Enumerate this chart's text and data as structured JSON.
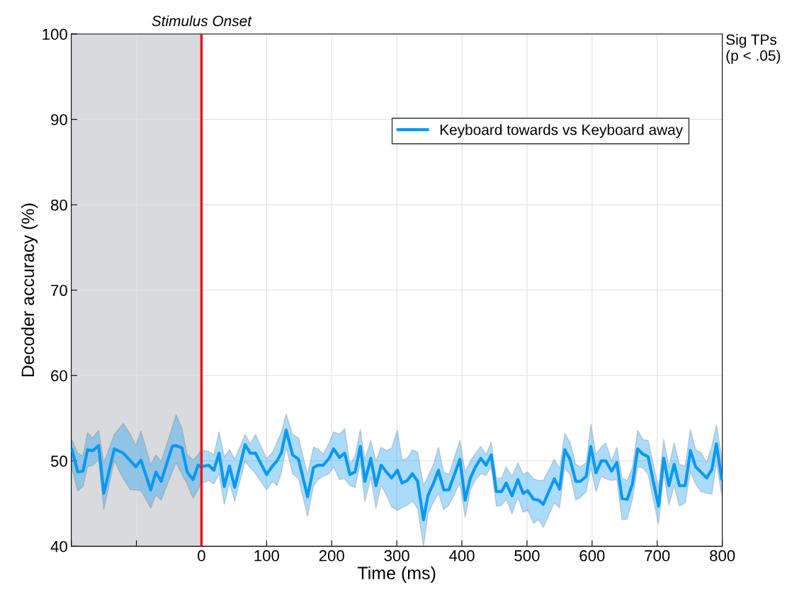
{
  "chart_data": {
    "type": "line",
    "xlabel": "Time (ms)",
    "ylabel": "Decoder accuracy (%)",
    "xlim": [
      -200,
      800
    ],
    "ylim": [
      40,
      100
    ],
    "xticks": [
      {
        "value": -200,
        "label": null
      },
      {
        "value": -100,
        "label": null
      },
      0,
      100,
      200,
      300,
      400,
      500,
      600,
      700,
      800
    ],
    "yticks": [
      40,
      50,
      60,
      70,
      80,
      90,
      100
    ],
    "grid": true,
    "legend": "top right",
    "line_style": "solid",
    "marker": "none",
    "bands": [
      {
        "axis": "x",
        "from": -200,
        "to": 0,
        "label": null,
        "color": "#d9dadd"
      }
    ],
    "ref_lines": [
      {
        "axis": "x",
        "value": 0,
        "label": "Stimulus Onset",
        "color": "#e8141b"
      }
    ],
    "annotations": [
      "Sig TPs\n(p < .05)"
    ],
    "series": [
      {
        "name": "Keyboard towards vs Keyboard away",
        "color": "#0b98f0",
        "x": [
          -199,
          -190,
          -182,
          -175,
          -167,
          -158,
          -150,
          -134,
          -120,
          -109,
          -101,
          -93,
          -78,
          -70,
          -62,
          -45,
          -39,
          -30,
          -22,
          -13,
          -5,
          -1,
          11,
          19,
          27,
          35,
          43,
          51,
          67,
          75,
          83,
          100,
          109,
          116,
          123,
          130,
          140,
          149,
          163,
          172,
          179,
          187,
          196,
          203,
          212,
          220,
          228,
          236,
          244,
          251,
          260,
          268,
          276,
          284,
          292,
          301,
          308,
          316,
          324,
          332,
          341,
          348,
          356,
          364,
          372,
          380,
          397,
          405,
          413,
          421,
          429,
          437,
          445,
          453,
          461,
          468,
          477,
          486,
          494,
          501,
          510,
          518,
          525,
          542,
          550,
          558,
          566,
          575,
          582,
          591,
          598,
          606,
          614,
          621,
          630,
          638,
          646,
          654,
          662,
          670,
          678,
          686,
          702,
          710,
          718,
          726,
          734,
          743,
          751,
          759,
          767,
          776,
          784,
          791,
          799
        ],
        "values": [
          51.3,
          48.7,
          48.8,
          51.3,
          51.2,
          51.8,
          46.2,
          51.4,
          50.9,
          50.0,
          49.3,
          50.1,
          46.6,
          48.7,
          47.6,
          51.7,
          51.8,
          51.5,
          48.7,
          47.8,
          49.5,
          49.3,
          49.5,
          48.9,
          50.9,
          47.0,
          49.4,
          46.9,
          51.9,
          50.9,
          50.9,
          48.4,
          49.4,
          50.0,
          51.0,
          53.6,
          50.7,
          50.2,
          45.8,
          49.2,
          49.5,
          49.5,
          50.3,
          51.4,
          50.4,
          50.9,
          48.4,
          48.7,
          51.7,
          47.6,
          50.3,
          47.1,
          49.5,
          48.7,
          48.0,
          48.9,
          47.4,
          47.7,
          48.5,
          47.6,
          43.1,
          46.0,
          47.3,
          48.9,
          46.6,
          46.6,
          50.2,
          45.4,
          48.0,
          49.3,
          50.3,
          49.5,
          50.7,
          46.4,
          46.4,
          47.4,
          45.9,
          47.8,
          46.2,
          46.5,
          45.5,
          45.4,
          44.9,
          47.9,
          46.7,
          51.3,
          50.2,
          47.6,
          47.6,
          48.2,
          51.7,
          48.6,
          50.0,
          50.0,
          48.8,
          49.8,
          45.6,
          45.5,
          47.3,
          51.4,
          50.8,
          50.5,
          44.7,
          50.3,
          47.1,
          49.6,
          47.1,
          47.1,
          51.2,
          49.3,
          48.7,
          48.0,
          49.0,
          52.0,
          47.9
        ],
        "upper": [
          52.5,
          50.9,
          50.6,
          53.3,
          52.7,
          53.6,
          49.8,
          53.1,
          54.4,
          53.1,
          51.8,
          53.5,
          49.6,
          50.7,
          49.9,
          53.9,
          55.4,
          53.8,
          50.7,
          50.1,
          50.7,
          51.3,
          51.1,
          50.7,
          53.4,
          50.5,
          51.3,
          50.2,
          53.1,
          52.0,
          53.1,
          50.3,
          51.0,
          52.2,
          53.4,
          55.5,
          53.1,
          52.7,
          48.4,
          51.6,
          51.4,
          50.8,
          52.1,
          53.4,
          53.1,
          53.8,
          49.6,
          50.6,
          53.7,
          50.2,
          52.4,
          50.0,
          51.6,
          51.2,
          51.5,
          53.6,
          50.1,
          50.3,
          51.3,
          51.0,
          47.1,
          48.2,
          49.5,
          51.6,
          48.7,
          48.4,
          52.4,
          48.7,
          50.0,
          50.9,
          51.7,
          50.7,
          52.2,
          48.0,
          48.0,
          49.3,
          48.2,
          49.8,
          48.4,
          48.7,
          47.9,
          47.7,
          47.7,
          50.2,
          49.1,
          53.2,
          52.2,
          49.6,
          49.3,
          49.8,
          54.3,
          50.8,
          51.6,
          52.1,
          50.0,
          51.6,
          48.0,
          47.7,
          49.3,
          53.6,
          52.5,
          52.4,
          46.9,
          52.5,
          49.3,
          52.1,
          49.6,
          49.4,
          53.7,
          51.3,
          51.0,
          49.8,
          51.8,
          54.2,
          50.5
        ],
        "lower": [
          49.0,
          46.5,
          47.0,
          49.3,
          49.5,
          50.1,
          44.3,
          50.0,
          47.9,
          46.6,
          46.6,
          46.5,
          44.5,
          46.0,
          45.4,
          48.7,
          49.8,
          48.4,
          47.3,
          45.6,
          46.7,
          47.3,
          47.7,
          47.3,
          48.5,
          44.9,
          47.4,
          45.3,
          49.9,
          49.2,
          48.5,
          46.6,
          47.6,
          47.1,
          48.7,
          51.6,
          48.5,
          47.9,
          43.5,
          47.0,
          47.8,
          48.2,
          48.5,
          49.3,
          47.8,
          47.9,
          47.1,
          46.9,
          49.8,
          45.2,
          48.1,
          44.4,
          47.1,
          46.0,
          44.6,
          44.2,
          44.5,
          44.8,
          45.3,
          44.4,
          40.0,
          43.8,
          45.1,
          46.2,
          44.3,
          44.8,
          47.4,
          43.4,
          46.6,
          47.8,
          48.5,
          48.3,
          49.3,
          44.7,
          44.8,
          45.5,
          43.8,
          45.7,
          44.0,
          44.2,
          42.7,
          43.1,
          42.2,
          45.1,
          44.5,
          49.2,
          48.4,
          45.4,
          45.7,
          46.4,
          49.2,
          46.4,
          48.2,
          47.9,
          47.7,
          47.8,
          43.1,
          43.2,
          45.5,
          49.3,
          49.2,
          48.4,
          42.6,
          48.4,
          44.8,
          47.1,
          44.7,
          45.1,
          48.7,
          47.3,
          46.4,
          46.2,
          46.1,
          49.8,
          46.0
        ]
      }
    ]
  }
}
